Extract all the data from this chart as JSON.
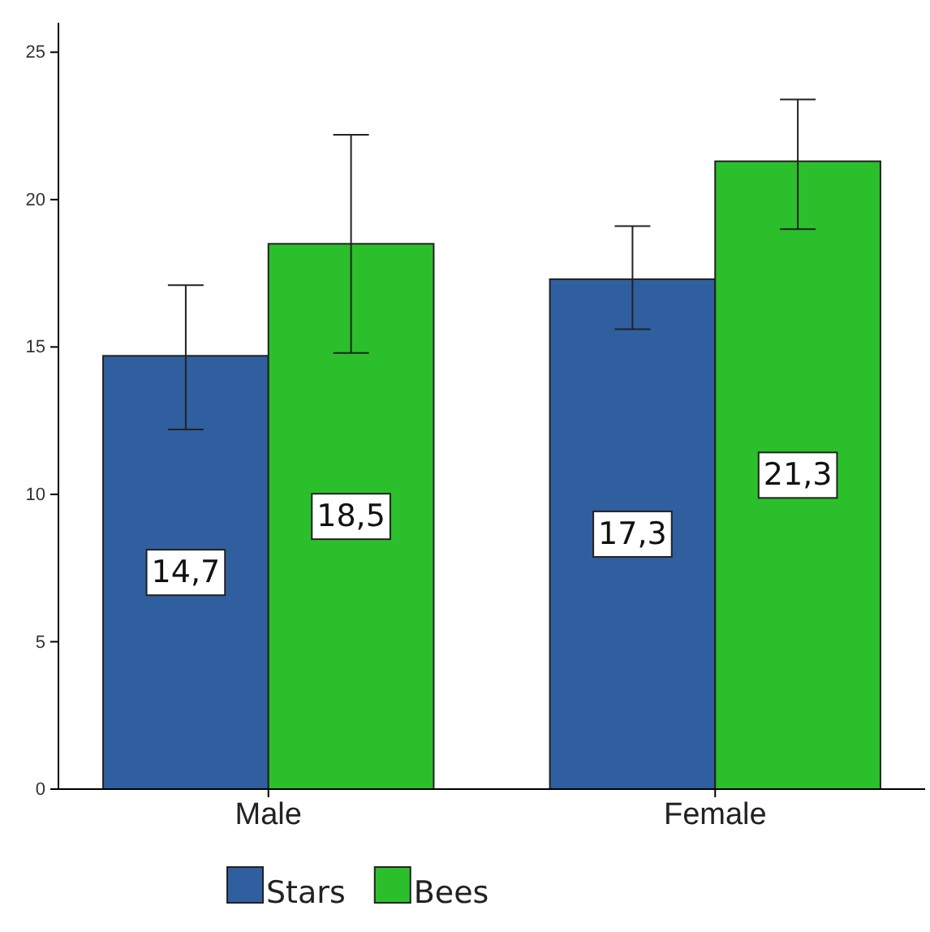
{
  "chart_data": {
    "type": "bar",
    "categories": [
      "Male",
      "Female"
    ],
    "series": [
      {
        "name": "Stars",
        "color": "#2f5f9e",
        "values": [
          14.7,
          17.3
        ],
        "value_labels": [
          "14,7",
          "17,3"
        ],
        "errors": [
          [
            12.2,
            17.1
          ],
          [
            15.6,
            19.1
          ]
        ]
      },
      {
        "name": "Bees",
        "color": "#2cbf2c",
        "values": [
          18.5,
          21.3
        ],
        "value_labels": [
          "18,5",
          "21,3"
        ],
        "errors": [
          [
            14.8,
            22.2
          ],
          [
            19.0,
            23.4
          ]
        ]
      }
    ],
    "ylim": [
      0,
      26
    ],
    "yticks": [
      0,
      5,
      10,
      15,
      20,
      25
    ],
    "grid": false,
    "legend": "bottom"
  }
}
